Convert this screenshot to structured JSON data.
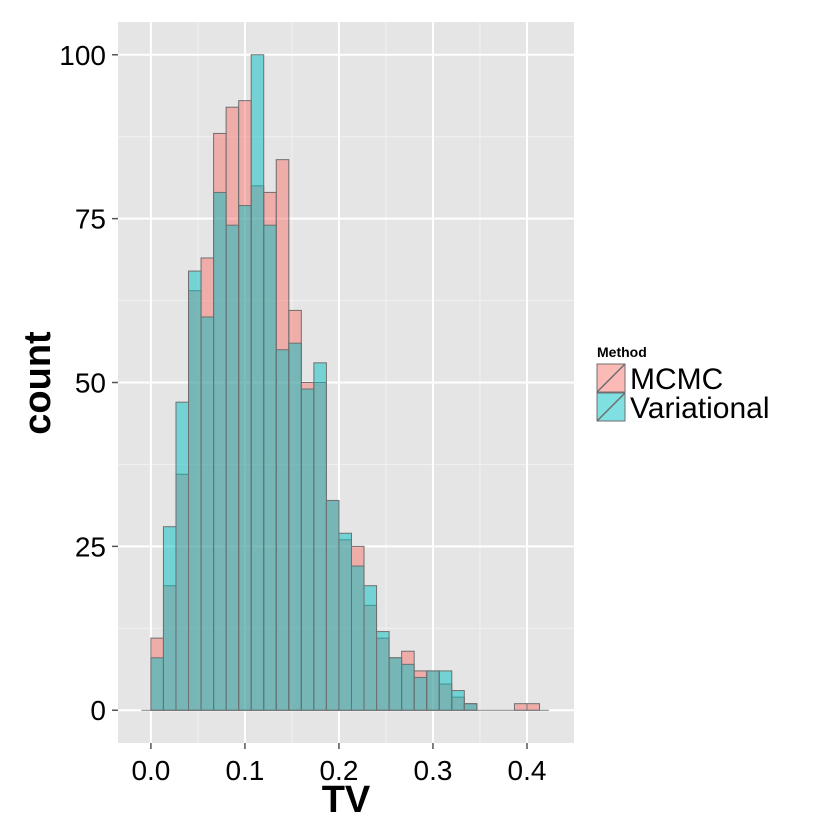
{
  "chart_data": {
    "type": "bar",
    "subtype": "overlaid-histogram",
    "xlabel": "TV",
    "ylabel": "count",
    "xlim": [
      -0.035,
      0.45
    ],
    "ylim": [
      -5,
      105
    ],
    "xticks": [
      "0.0",
      "0.1",
      "0.2",
      "0.3",
      "0.4"
    ],
    "yticks": [
      "0",
      "25",
      "50",
      "75",
      "100"
    ],
    "bin_width": 0.01333,
    "bin_starts": [
      0.0,
      0.01333,
      0.02667,
      0.04,
      0.05333,
      0.06667,
      0.08,
      0.09333,
      0.10667,
      0.12,
      0.13333,
      0.14667,
      0.16,
      0.17333,
      0.18667,
      0.2,
      0.21333,
      0.22667,
      0.24,
      0.25333,
      0.26667,
      0.28,
      0.29333,
      0.30667,
      0.32,
      0.33333,
      0.34667,
      0.36,
      0.37333,
      0.38667,
      0.4
    ],
    "legend": {
      "title": "Method",
      "position": "right"
    },
    "series": [
      {
        "name": "MCMC",
        "color": "#F8766D",
        "values": [
          11,
          19,
          36,
          64,
          69,
          88,
          92,
          93,
          80,
          79,
          84,
          61,
          50,
          50,
          32,
          26,
          25,
          16,
          11,
          8,
          9,
          6,
          6,
          4,
          2,
          1,
          0,
          0,
          0,
          1,
          1
        ]
      },
      {
        "name": "Variational",
        "color": "#00BFC4",
        "values": [
          8,
          28,
          47,
          67,
          60,
          79,
          74,
          77,
          100,
          74,
          55,
          56,
          49,
          53,
          32,
          27,
          22,
          19,
          12,
          8,
          7,
          5,
          6,
          6,
          3,
          1,
          0,
          0,
          0,
          0,
          0
        ]
      }
    ],
    "grid": true,
    "background": "#E5E5E5",
    "gridline_color": "#FFFFFF"
  }
}
